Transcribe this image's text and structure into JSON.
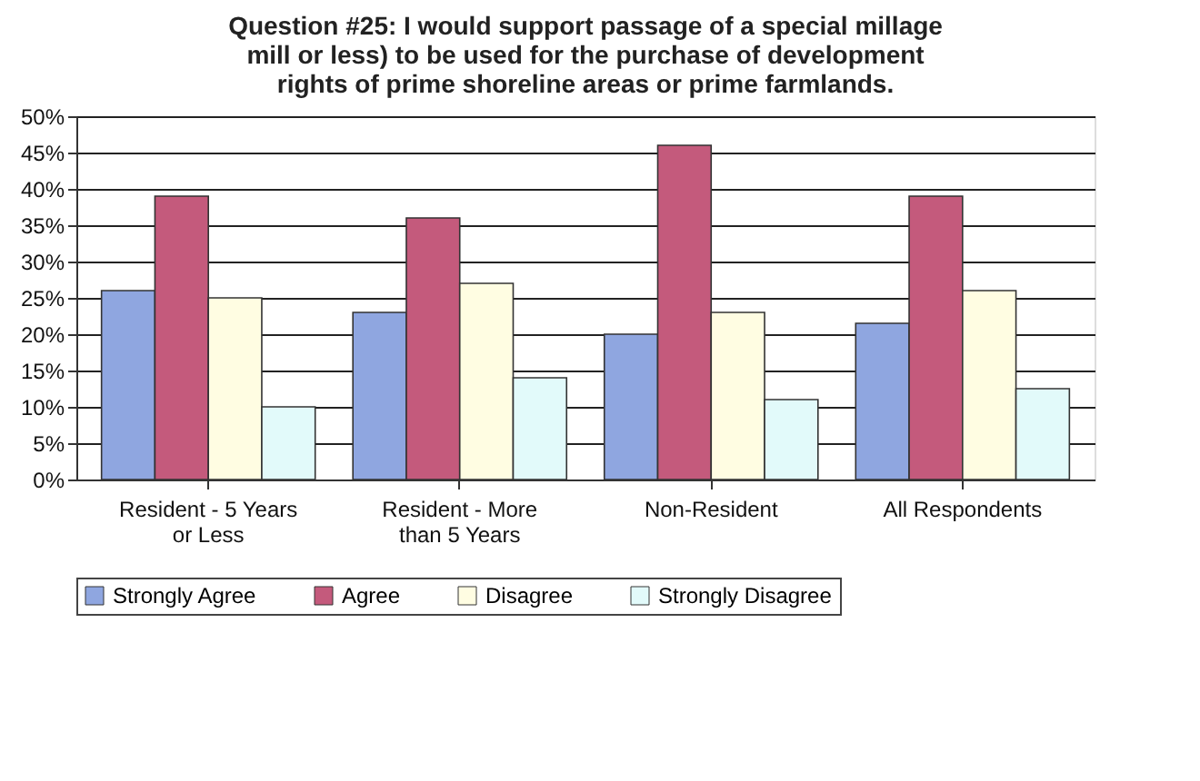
{
  "chart_data": {
    "type": "bar",
    "title": "Question #25:  I would support passage of a special millage mill or less) to be used for the purchase of development rights  of prime shoreline areas or prime farmlands.",
    "categories": [
      "Resident - 5 Years or Less",
      "Resident - More than 5 Years",
      "Non-Resident",
      "All Respondents"
    ],
    "series": [
      {
        "name": "Strongly Agree",
        "color": "#8fa6e0",
        "values": [
          26,
          23,
          20,
          21.5
        ]
      },
      {
        "name": "Agree",
        "color": "#c45a7c",
        "values": [
          39,
          36,
          46,
          39
        ]
      },
      {
        "name": "Disagree",
        "color": "#fffde2",
        "values": [
          25,
          27,
          23,
          26
        ]
      },
      {
        "name": "Strongly Disagree",
        "color": "#e2fafa",
        "values": [
          10,
          14,
          11,
          12.5
        ]
      }
    ],
    "ylim": [
      0,
      50
    ],
    "yticks": [
      {
        "value": 0,
        "label": "0%"
      },
      {
        "value": 5,
        "label": "5%"
      },
      {
        "value": 10,
        "label": "10%"
      },
      {
        "value": 15,
        "label": "15%"
      },
      {
        "value": 20,
        "label": "20%"
      },
      {
        "value": 25,
        "label": "25%"
      },
      {
        "value": 30,
        "label": "30%"
      },
      {
        "value": 35,
        "label": "35%"
      },
      {
        "value": 40,
        "label": "40%"
      },
      {
        "value": 45,
        "label": "45%"
      },
      {
        "value": 50,
        "label": "50%"
      }
    ],
    "grid": "y",
    "legend": "bottom"
  }
}
